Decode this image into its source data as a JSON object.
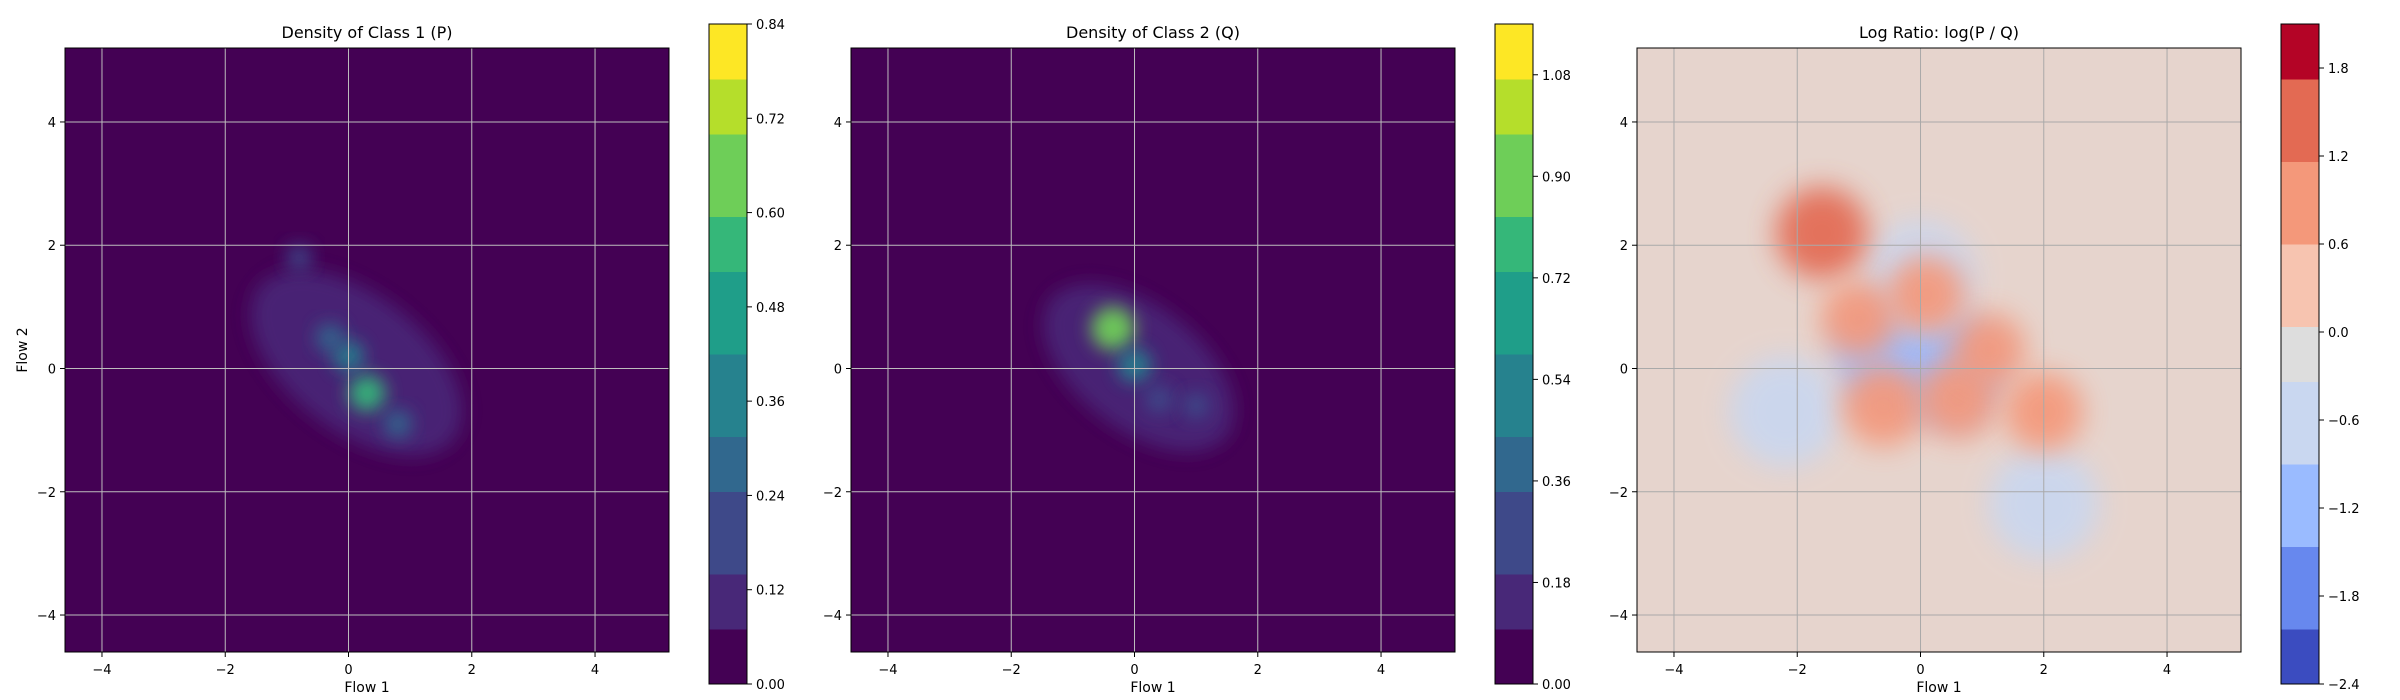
{
  "chart_data": [
    {
      "type": "heatmap",
      "title": "Density of Class 1 (P)",
      "xlabel": "Flow 1",
      "ylabel": "Flow 2",
      "xlim": [
        -4.6,
        5.2
      ],
      "ylim": [
        -4.6,
        5.2
      ],
      "xticks": [
        -4,
        -2,
        0,
        2,
        4
      ],
      "yticks": [
        -4,
        -2,
        0,
        2,
        4
      ],
      "grid": true,
      "colormap": "viridis",
      "colorbar": {
        "min": 0.0,
        "max": 0.84,
        "ticks": [
          "0.00",
          "0.12",
          "0.24",
          "0.36",
          "0.48",
          "0.60",
          "0.72",
          "0.84"
        ]
      },
      "peaks": [
        {
          "x": 0.3,
          "y": -0.4,
          "value": 0.6
        },
        {
          "x": 0.0,
          "y": 0.2,
          "value": 0.4
        },
        {
          "x": -0.3,
          "y": 0.5,
          "value": 0.3
        },
        {
          "x": 0.8,
          "y": -0.9,
          "value": 0.3
        },
        {
          "x": -0.8,
          "y": 1.8,
          "value": 0.2
        }
      ]
    },
    {
      "type": "heatmap",
      "title": "Density of Class 2 (Q)",
      "xlabel": "Flow 1",
      "ylabel": "",
      "xlim": [
        -4.6,
        5.2
      ],
      "ylim": [
        -4.6,
        5.2
      ],
      "xticks": [
        -4,
        -2,
        0,
        2,
        4
      ],
      "yticks": [
        -4,
        -2,
        0,
        2,
        4
      ],
      "grid": true,
      "colormap": "viridis",
      "colorbar": {
        "min": 0.0,
        "max": 1.17,
        "ticks": [
          "0.00",
          "0.18",
          "0.36",
          "0.54",
          "0.72",
          "0.90",
          "1.08"
        ]
      },
      "peaks": [
        {
          "x": -0.35,
          "y": 0.65,
          "value": 0.85
        },
        {
          "x": 0.0,
          "y": 0.05,
          "value": 0.5
        },
        {
          "x": 0.4,
          "y": -0.5,
          "value": 0.3
        },
        {
          "x": 1.0,
          "y": -0.6,
          "value": 0.25
        }
      ]
    },
    {
      "type": "heatmap",
      "title": "Log Ratio: log(P / Q)",
      "xlabel": "Flow 1",
      "ylabel": "",
      "xlim": [
        -4.6,
        5.2
      ],
      "ylim": [
        -4.6,
        5.2
      ],
      "xticks": [
        -4,
        -2,
        0,
        2,
        4
      ],
      "yticks": [
        -4,
        -2,
        0,
        2,
        4
      ],
      "grid": true,
      "colormap": "coolwarm",
      "colorbar": {
        "min": -2.4,
        "max": 2.1,
        "ticks": [
          "−2.4",
          "−1.8",
          "−1.2",
          "−0.6",
          "0.0",
          "0.6",
          "1.2",
          "1.8"
        ]
      },
      "positive_regions": [
        {
          "x": -1.6,
          "y": 2.2,
          "value": 1.6
        },
        {
          "x": -0.6,
          "y": -0.6,
          "value": 1.1
        },
        {
          "x": 0.6,
          "y": -0.5,
          "value": 1.0
        },
        {
          "x": 2.0,
          "y": -0.7,
          "value": 0.9
        },
        {
          "x": 0.1,
          "y": 1.2,
          "value": 0.9
        },
        {
          "x": -1.0,
          "y": 0.8,
          "value": 0.8
        },
        {
          "x": 1.1,
          "y": 0.3,
          "value": 0.7
        }
      ],
      "negative_regions": [
        {
          "x": -0.5,
          "y": 0.2,
          "value": -1.1
        },
        {
          "x": 0.4,
          "y": 0.0,
          "value": -1.0
        },
        {
          "x": 2.0,
          "y": -2.2,
          "value": -0.9
        },
        {
          "x": -2.2,
          "y": -0.7,
          "value": -0.6
        },
        {
          "x": 0.0,
          "y": 1.5,
          "value": -0.8
        }
      ]
    }
  ]
}
